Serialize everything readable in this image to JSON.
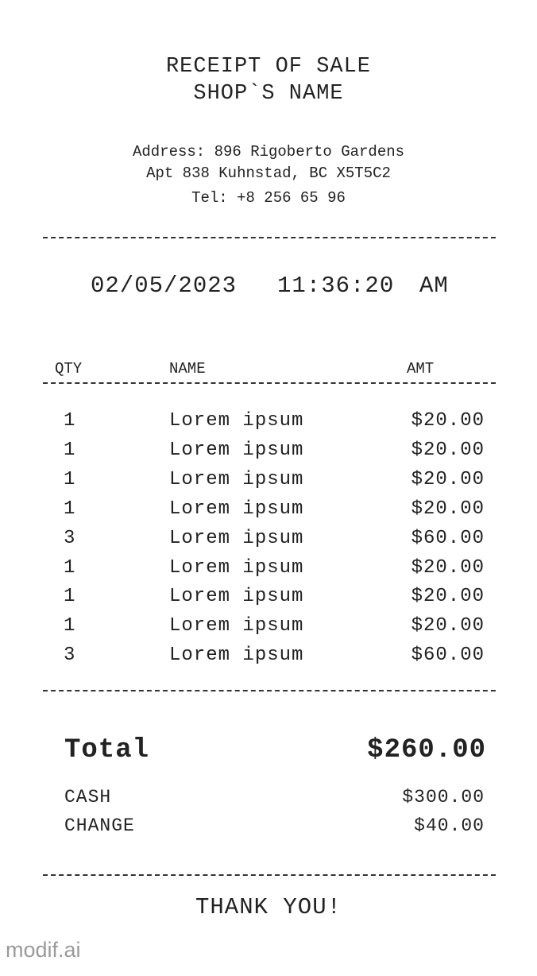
{
  "header": {
    "title": "RECEIPT OF SALE",
    "shop_name": "SHOP`S NAME"
  },
  "address": {
    "line1": "Address: 896 Rigoberto Gardens",
    "line2": "Apt 838 Kuhnstad, BC X5T5C2",
    "line3": "Tel: +8 256 65 96"
  },
  "datetime": {
    "date": "02/05/2023",
    "time": "11:36:20",
    "ampm": "AM"
  },
  "columns": {
    "qty": "QTY",
    "name": "NAME",
    "amt": "AMT"
  },
  "items": [
    {
      "qty": "1",
      "name": "Lorem ipsum",
      "amt": "$20.00"
    },
    {
      "qty": "1",
      "name": "Lorem ipsum",
      "amt": "$20.00"
    },
    {
      "qty": "1",
      "name": "Lorem ipsum",
      "amt": "$20.00"
    },
    {
      "qty": "1",
      "name": "Lorem ipsum",
      "amt": "$20.00"
    },
    {
      "qty": "3",
      "name": "Lorem ipsum",
      "amt": "$60.00"
    },
    {
      "qty": "1",
      "name": "Lorem ipsum",
      "amt": "$20.00"
    },
    {
      "qty": "1",
      "name": "Lorem ipsum",
      "amt": "$20.00"
    },
    {
      "qty": "1",
      "name": "Lorem ipsum",
      "amt": "$20.00"
    },
    {
      "qty": "3",
      "name": "Lorem ipsum",
      "amt": "$60.00"
    }
  ],
  "totals": {
    "total_label": "Total",
    "total_value": "$260.00",
    "cash_label": "CASH",
    "cash_value": "$300.00",
    "change_label": "CHANGE",
    "change_value": "$40.00"
  },
  "footer": {
    "thanks": "THANK YOU!",
    "brand": "modif.ai"
  }
}
